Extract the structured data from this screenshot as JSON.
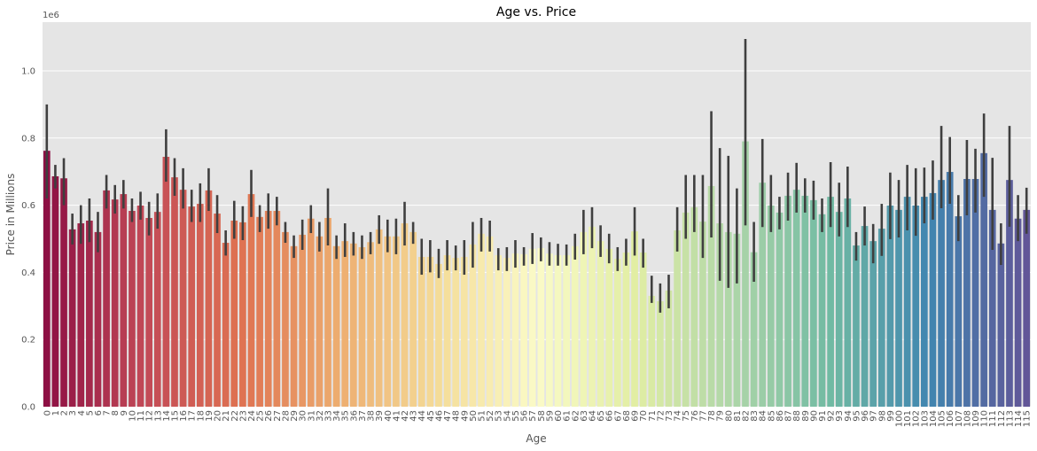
{
  "chart_data": {
    "type": "bar",
    "title": "Age vs. Price",
    "xlabel": "Age",
    "ylabel": "Price in Millions",
    "offset_label": "1e6",
    "categories": [
      "0",
      "1",
      "2",
      "3",
      "4",
      "5",
      "6",
      "7",
      "8",
      "9",
      "10",
      "11",
      "12",
      "13",
      "14",
      "15",
      "16",
      "17",
      "18",
      "19",
      "20",
      "21",
      "22",
      "23",
      "24",
      "25",
      "26",
      "27",
      "28",
      "29",
      "30",
      "31",
      "32",
      "33",
      "34",
      "35",
      "36",
      "37",
      "38",
      "39",
      "40",
      "41",
      "42",
      "43",
      "44",
      "45",
      "46",
      "47",
      "48",
      "49",
      "50",
      "51",
      "52",
      "53",
      "54",
      "55",
      "56",
      "57",
      "58",
      "59",
      "60",
      "61",
      "62",
      "63",
      "64",
      "65",
      "66",
      "67",
      "68",
      "69",
      "70",
      "71",
      "72",
      "73",
      "74",
      "75",
      "76",
      "77",
      "78",
      "79",
      "80",
      "81",
      "82",
      "83",
      "84",
      "85",
      "86",
      "87",
      "88",
      "89",
      "90",
      "91",
      "92",
      "93",
      "94",
      "95",
      "96",
      "97",
      "98",
      "99",
      "100",
      "101",
      "102",
      "103",
      "104",
      "105",
      "106",
      "107",
      "108",
      "109",
      "110",
      "111",
      "112",
      "113",
      "114",
      "115"
    ],
    "values": [
      0.762,
      0.686,
      0.68,
      0.528,
      0.546,
      0.554,
      0.52,
      0.644,
      0.617,
      0.633,
      0.583,
      0.599,
      0.562,
      0.58,
      0.744,
      0.683,
      0.646,
      0.596,
      0.604,
      0.644,
      0.575,
      0.488,
      0.554,
      0.549,
      0.633,
      0.565,
      0.583,
      0.583,
      0.52,
      0.478,
      0.512,
      0.56,
      0.507,
      0.562,
      0.478,
      0.493,
      0.486,
      0.475,
      0.49,
      0.528,
      0.507,
      0.507,
      0.546,
      0.52,
      0.446,
      0.446,
      0.425,
      0.451,
      0.443,
      0.446,
      0.483,
      0.515,
      0.507,
      0.451,
      0.443,
      0.456,
      0.454,
      0.47,
      0.472,
      0.456,
      0.451,
      0.451,
      0.478,
      0.52,
      0.536,
      0.493,
      0.47,
      0.44,
      0.459,
      0.522,
      0.459,
      0.33,
      0.314,
      0.346,
      0.525,
      0.578,
      0.594,
      0.551,
      0.657,
      0.546,
      0.52,
      0.515,
      0.79,
      0.46,
      0.667,
      0.599,
      0.578,
      0.628,
      0.646,
      0.628,
      0.615,
      0.573,
      0.625,
      0.58,
      0.62,
      0.48,
      0.538,
      0.493,
      0.53,
      0.599,
      0.586,
      0.625,
      0.599,
      0.625,
      0.636,
      0.675,
      0.699,
      0.567,
      0.678,
      0.678,
      0.755,
      0.586,
      0.486,
      0.675,
      0.56,
      0.586
    ],
    "ci_low": [
      0.62,
      0.65,
      0.6,
      0.483,
      0.485,
      0.49,
      0.46,
      0.59,
      0.575,
      0.59,
      0.55,
      0.557,
      0.51,
      0.53,
      0.67,
      0.628,
      0.59,
      0.55,
      0.55,
      0.583,
      0.517,
      0.45,
      0.5,
      0.496,
      0.565,
      0.52,
      0.53,
      0.54,
      0.488,
      0.443,
      0.467,
      0.517,
      0.462,
      0.48,
      0.44,
      0.446,
      0.45,
      0.44,
      0.454,
      0.485,
      0.46,
      0.454,
      0.48,
      0.485,
      0.393,
      0.4,
      0.383,
      0.406,
      0.406,
      0.393,
      0.414,
      0.462,
      0.462,
      0.406,
      0.404,
      0.414,
      0.42,
      0.425,
      0.433,
      0.42,
      0.42,
      0.42,
      0.438,
      0.454,
      0.472,
      0.446,
      0.427,
      0.404,
      0.42,
      0.45,
      0.414,
      0.309,
      0.28,
      0.293,
      0.462,
      0.5,
      0.52,
      0.443,
      0.504,
      0.375,
      0.354,
      0.367,
      0.54,
      0.372,
      0.535,
      0.52,
      0.528,
      0.554,
      0.578,
      0.578,
      0.557,
      0.52,
      0.535,
      0.507,
      0.535,
      0.435,
      0.48,
      0.427,
      0.449,
      0.499,
      0.504,
      0.525,
      0.509,
      0.546,
      0.557,
      0.591,
      0.604,
      0.493,
      0.57,
      0.578,
      0.625,
      0.467,
      0.422,
      0.536,
      0.493,
      0.515
    ],
    "ci_high": [
      0.9,
      0.72,
      0.74,
      0.575,
      0.6,
      0.62,
      0.58,
      0.69,
      0.66,
      0.675,
      0.62,
      0.64,
      0.61,
      0.635,
      0.826,
      0.74,
      0.71,
      0.646,
      0.665,
      0.71,
      0.63,
      0.525,
      0.613,
      0.597,
      0.705,
      0.6,
      0.635,
      0.625,
      0.55,
      0.51,
      0.557,
      0.6,
      0.55,
      0.65,
      0.51,
      0.546,
      0.52,
      0.51,
      0.52,
      0.57,
      0.557,
      0.56,
      0.61,
      0.55,
      0.5,
      0.496,
      0.47,
      0.496,
      0.48,
      0.496,
      0.55,
      0.562,
      0.554,
      0.472,
      0.475,
      0.496,
      0.475,
      0.517,
      0.504,
      0.49,
      0.485,
      0.483,
      0.515,
      0.586,
      0.594,
      0.54,
      0.515,
      0.475,
      0.5,
      0.594,
      0.5,
      0.39,
      0.367,
      0.393,
      0.594,
      0.69,
      0.69,
      0.69,
      0.88,
      0.77,
      0.747,
      0.65,
      1.095,
      0.55,
      0.797,
      0.69,
      0.625,
      0.697,
      0.726,
      0.68,
      0.673,
      0.62,
      0.728,
      0.667,
      0.715,
      0.52,
      0.596,
      0.544,
      0.604,
      0.697,
      0.675,
      0.72,
      0.71,
      0.712,
      0.733,
      0.836,
      0.803,
      0.63,
      0.794,
      0.768,
      0.873,
      0.741,
      0.546,
      0.836,
      0.63,
      0.652
    ],
    "palette": [
      "#9e0142",
      "#d53e4f",
      "#f46d43",
      "#fdae61",
      "#fee08b",
      "#ffffbf",
      "#e6f598",
      "#abdda4",
      "#66c2a5",
      "#3288bd",
      "#5e4fa2"
    ],
    "error_color": "#3f3f3f",
    "ylim": [
      0,
      1.145
    ],
    "yticks": [
      {
        "value": 0,
        "label": "0.0"
      },
      {
        "value": 0.2,
        "label": "0.2"
      },
      {
        "value": 0.4,
        "label": "0.4"
      },
      {
        "value": 0.6,
        "label": "0.6"
      },
      {
        "value": 0.8,
        "label": "0.8"
      },
      {
        "value": 1.0,
        "label": "1.0"
      }
    ],
    "grid": true
  }
}
